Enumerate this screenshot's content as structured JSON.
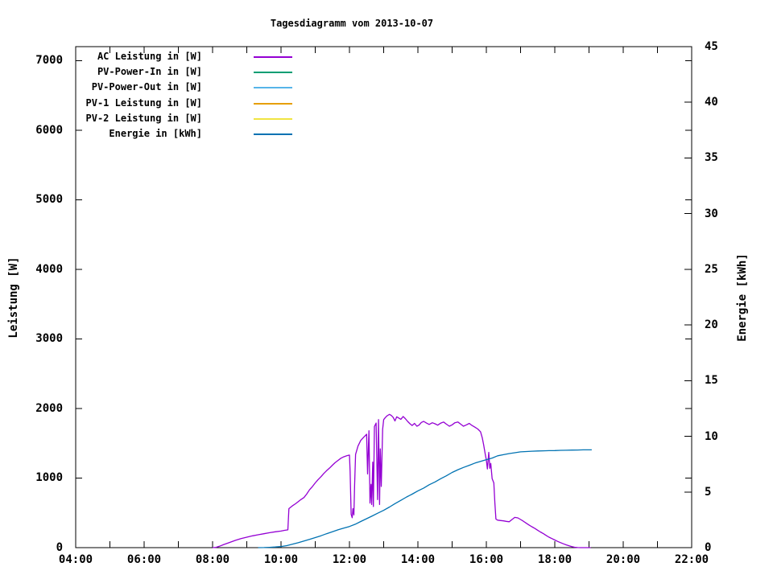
{
  "chart_data": {
    "type": "line",
    "title": "Tagesdiagramm vom 2013-10-07",
    "ylabel": "Leistung [W]",
    "y2label": "Energie [kWh]",
    "x_axis": "time of day",
    "x_range_hours": [
      4,
      22
    ],
    "x_tick_hours": [
      4,
      6,
      8,
      10,
      12,
      14,
      16,
      18,
      20,
      22
    ],
    "x_tick_labels": [
      "04:00",
      "06:00",
      "08:00",
      "10:00",
      "12:00",
      "14:00",
      "16:00",
      "18:00",
      "20:00",
      "22:00"
    ],
    "x_minor_tick_hours": [
      5,
      7,
      9,
      11,
      13,
      15,
      17,
      19,
      21
    ],
    "y_range": [
      0,
      7200
    ],
    "y_ticks": [
      0,
      1000,
      2000,
      3000,
      4000,
      5000,
      6000,
      7000
    ],
    "y2_range": [
      0,
      45
    ],
    "y2_ticks": [
      0,
      5,
      10,
      15,
      20,
      25,
      30,
      35,
      40,
      45
    ],
    "grid": false,
    "legend_position": "top-left-inside",
    "frame_color": "#000000",
    "background_color": "#ffffff",
    "series": [
      {
        "name": "AC Leistung in [W]",
        "color": "#9400d3",
        "axis": "y",
        "points": [
          [
            8.0,
            0
          ],
          [
            8.1,
            5
          ],
          [
            8.2,
            20
          ],
          [
            8.33,
            45
          ],
          [
            8.5,
            75
          ],
          [
            8.67,
            105
          ],
          [
            8.83,
            130
          ],
          [
            9.0,
            150
          ],
          [
            9.17,
            170
          ],
          [
            9.33,
            185
          ],
          [
            9.5,
            200
          ],
          [
            9.67,
            215
          ],
          [
            9.83,
            228
          ],
          [
            10.0,
            238
          ],
          [
            10.1,
            248
          ],
          [
            10.2,
            255
          ],
          [
            10.23,
            560
          ],
          [
            10.33,
            600
          ],
          [
            10.42,
            630
          ],
          [
            10.5,
            660
          ],
          [
            10.58,
            690
          ],
          [
            10.67,
            720
          ],
          [
            10.75,
            770
          ],
          [
            10.83,
            830
          ],
          [
            10.92,
            880
          ],
          [
            11.0,
            930
          ],
          [
            11.08,
            975
          ],
          [
            11.17,
            1020
          ],
          [
            11.25,
            1065
          ],
          [
            11.33,
            1105
          ],
          [
            11.42,
            1145
          ],
          [
            11.5,
            1185
          ],
          [
            11.58,
            1220
          ],
          [
            11.67,
            1255
          ],
          [
            11.75,
            1285
          ],
          [
            11.83,
            1305
          ],
          [
            11.92,
            1320
          ],
          [
            12.0,
            1330
          ],
          [
            12.02,
            1100
          ],
          [
            12.05,
            480
          ],
          [
            12.08,
            430
          ],
          [
            12.1,
            560
          ],
          [
            12.13,
            470
          ],
          [
            12.15,
            900
          ],
          [
            12.18,
            1340
          ],
          [
            12.25,
            1460
          ],
          [
            12.33,
            1540
          ],
          [
            12.42,
            1590
          ],
          [
            12.47,
            1615
          ],
          [
            12.5,
            1630
          ],
          [
            12.53,
            1060
          ],
          [
            12.57,
            1680
          ],
          [
            12.6,
            640
          ],
          [
            12.63,
            910
          ],
          [
            12.65,
            620
          ],
          [
            12.68,
            1230
          ],
          [
            12.7,
            590
          ],
          [
            12.73,
            1740
          ],
          [
            12.78,
            1790
          ],
          [
            12.82,
            690
          ],
          [
            12.85,
            1840
          ],
          [
            12.88,
            620
          ],
          [
            12.9,
            1420
          ],
          [
            12.93,
            880
          ],
          [
            12.97,
            1700
          ],
          [
            13.0,
            1840
          ],
          [
            13.05,
            1870
          ],
          [
            13.1,
            1895
          ],
          [
            13.17,
            1915
          ],
          [
            13.22,
            1900
          ],
          [
            13.28,
            1870
          ],
          [
            13.33,
            1820
          ],
          [
            13.38,
            1880
          ],
          [
            13.45,
            1860
          ],
          [
            13.5,
            1845
          ],
          [
            13.57,
            1885
          ],
          [
            13.63,
            1855
          ],
          [
            13.7,
            1815
          ],
          [
            13.77,
            1780
          ],
          [
            13.83,
            1755
          ],
          [
            13.9,
            1785
          ],
          [
            13.97,
            1745
          ],
          [
            14.03,
            1760
          ],
          [
            14.1,
            1800
          ],
          [
            14.17,
            1815
          ],
          [
            14.25,
            1790
          ],
          [
            14.33,
            1770
          ],
          [
            14.42,
            1795
          ],
          [
            14.5,
            1780
          ],
          [
            14.58,
            1760
          ],
          [
            14.67,
            1790
          ],
          [
            14.75,
            1805
          ],
          [
            14.83,
            1775
          ],
          [
            14.92,
            1745
          ],
          [
            15.0,
            1765
          ],
          [
            15.08,
            1795
          ],
          [
            15.17,
            1805
          ],
          [
            15.25,
            1775
          ],
          [
            15.33,
            1745
          ],
          [
            15.42,
            1765
          ],
          [
            15.5,
            1785
          ],
          [
            15.58,
            1755
          ],
          [
            15.67,
            1730
          ],
          [
            15.75,
            1705
          ],
          [
            15.83,
            1665
          ],
          [
            15.88,
            1580
          ],
          [
            15.92,
            1480
          ],
          [
            15.97,
            1340
          ],
          [
            16.0,
            1260
          ],
          [
            16.03,
            1130
          ],
          [
            16.07,
            1370
          ],
          [
            16.1,
            1140
          ],
          [
            16.13,
            1210
          ],
          [
            16.17,
            990
          ],
          [
            16.22,
            930
          ],
          [
            16.25,
            640
          ],
          [
            16.28,
            410
          ],
          [
            16.33,
            395
          ],
          [
            16.42,
            390
          ],
          [
            16.5,
            385
          ],
          [
            16.58,
            378
          ],
          [
            16.67,
            372
          ],
          [
            16.75,
            405
          ],
          [
            16.83,
            435
          ],
          [
            16.92,
            428
          ],
          [
            17.0,
            405
          ],
          [
            17.08,
            380
          ],
          [
            17.17,
            350
          ],
          [
            17.25,
            325
          ],
          [
            17.33,
            300
          ],
          [
            17.42,
            275
          ],
          [
            17.5,
            250
          ],
          [
            17.58,
            225
          ],
          [
            17.67,
            200
          ],
          [
            17.75,
            175
          ],
          [
            17.83,
            150
          ],
          [
            17.92,
            130
          ],
          [
            18.0,
            110
          ],
          [
            18.08,
            90
          ],
          [
            18.17,
            72
          ],
          [
            18.25,
            55
          ],
          [
            18.33,
            40
          ],
          [
            18.42,
            25
          ],
          [
            18.5,
            14
          ],
          [
            18.58,
            6
          ],
          [
            18.67,
            1
          ],
          [
            18.75,
            0
          ],
          [
            19.05,
            0
          ]
        ]
      },
      {
        "name": "PV-Power-In in [W]",
        "color": "#009e73",
        "axis": "y",
        "points": []
      },
      {
        "name": "PV-Power-Out in [W]",
        "color": "#56b4e9",
        "axis": "y",
        "points": []
      },
      {
        "name": "PV-1 Leistung in [W]",
        "color": "#e69f00",
        "axis": "y",
        "points": []
      },
      {
        "name": "PV-2 Leistung in [W]",
        "color": "#f0e442",
        "axis": "y",
        "points": []
      },
      {
        "name": "Energie in [kWh]",
        "color": "#0072b2",
        "axis": "y2",
        "points": [
          [
            9.33,
            0
          ],
          [
            9.5,
            0.01
          ],
          [
            9.67,
            0.03
          ],
          [
            9.83,
            0.06
          ],
          [
            10.0,
            0.1
          ],
          [
            10.17,
            0.18
          ],
          [
            10.33,
            0.3
          ],
          [
            10.5,
            0.44
          ],
          [
            10.67,
            0.6
          ],
          [
            10.83,
            0.74
          ],
          [
            11.0,
            0.9
          ],
          [
            11.17,
            1.07
          ],
          [
            11.33,
            1.25
          ],
          [
            11.5,
            1.42
          ],
          [
            11.67,
            1.6
          ],
          [
            11.83,
            1.75
          ],
          [
            12.0,
            1.9
          ],
          [
            12.17,
            2.1
          ],
          [
            12.33,
            2.35
          ],
          [
            12.5,
            2.6
          ],
          [
            12.67,
            2.85
          ],
          [
            12.83,
            3.1
          ],
          [
            13.0,
            3.35
          ],
          [
            13.17,
            3.65
          ],
          [
            13.33,
            3.95
          ],
          [
            13.5,
            4.25
          ],
          [
            13.67,
            4.55
          ],
          [
            13.83,
            4.8
          ],
          [
            14.0,
            5.1
          ],
          [
            14.17,
            5.35
          ],
          [
            14.33,
            5.65
          ],
          [
            14.5,
            5.9
          ],
          [
            14.67,
            6.2
          ],
          [
            14.83,
            6.45
          ],
          [
            15.0,
            6.75
          ],
          [
            15.17,
            7.0
          ],
          [
            15.33,
            7.2
          ],
          [
            15.5,
            7.4
          ],
          [
            15.67,
            7.6
          ],
          [
            15.83,
            7.75
          ],
          [
            16.0,
            7.9
          ],
          [
            16.17,
            8.05
          ],
          [
            16.33,
            8.25
          ],
          [
            16.5,
            8.35
          ],
          [
            16.67,
            8.45
          ],
          [
            16.83,
            8.52
          ],
          [
            17.0,
            8.6
          ],
          [
            17.17,
            8.63
          ],
          [
            17.33,
            8.66
          ],
          [
            17.5,
            8.68
          ],
          [
            17.67,
            8.7
          ],
          [
            17.83,
            8.71
          ],
          [
            18.0,
            8.72
          ],
          [
            18.17,
            8.74
          ],
          [
            18.33,
            8.75
          ],
          [
            18.5,
            8.76
          ],
          [
            18.67,
            8.77
          ],
          [
            18.83,
            8.78
          ],
          [
            19.0,
            8.78
          ],
          [
            19.08,
            8.78
          ]
        ]
      }
    ]
  }
}
